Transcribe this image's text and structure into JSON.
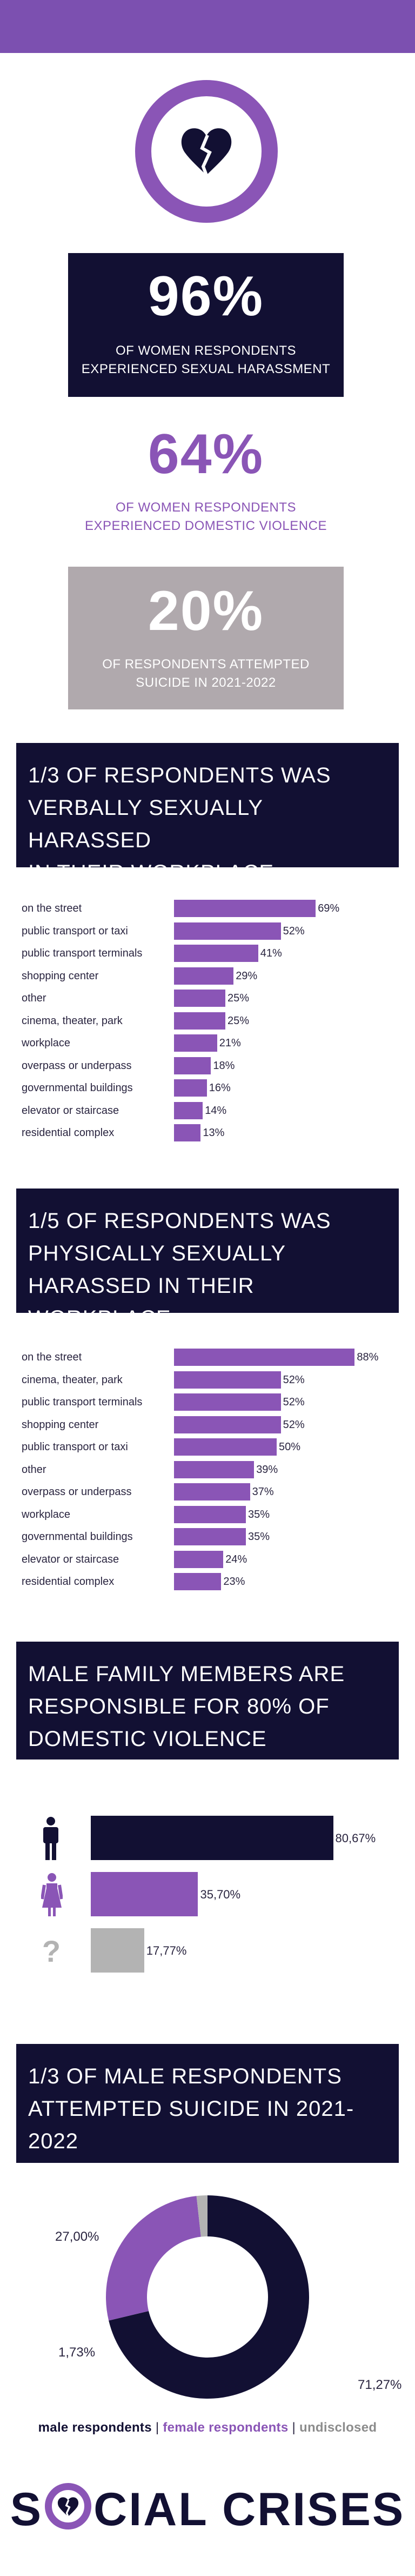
{
  "stats": [
    {
      "value": "96%",
      "caption_l1": "OF WOMEN RESPONDENTS",
      "caption_l2": "EXPERIENCED SEXUAL HARASSMENT"
    },
    {
      "value": "64%",
      "caption_l1": "OF WOMEN RESPONDENTS",
      "caption_l2": "EXPERIENCED DOMESTIC VIOLENCE"
    },
    {
      "value": "20%",
      "caption_l1": "OF RESPONDENTS ATTEMPTED",
      "caption_l2": "SUICIDE IN 2021-2022"
    }
  ],
  "headings": {
    "verbal": [
      "1/3 OF RESPONDENTS WAS",
      "VERBALLY SEXUALLY HARASSED",
      "IN THEIR WORKPLACE"
    ],
    "physical": [
      "1/5 OF RESPONDENTS WAS",
      "PHYSICALLY SEXUALLY",
      "HARASSED IN THEIR WORKPLACE"
    ],
    "domestic": [
      "MALE FAMILY MEMBERS ARE",
      "RESPONSIBLE FOR 80% OF",
      "DOMESTIC VIOLENCE"
    ],
    "suicide": [
      "1/3 OF MALE RESPONDENTS",
      "ATTEMPTED SUICIDE IN 2021-",
      "2022"
    ]
  },
  "legend": {
    "male": "male respondents",
    "female": "female respondents",
    "undisclosed": "undisclosed",
    "sep": "|"
  },
  "brand": {
    "left": "S",
    "right": "CIAL CRISES"
  },
  "colors": {
    "navy": "#121033",
    "purple": "#8a55b6",
    "grey": "#b3b3b3",
    "lilac": "#b0a9ad"
  },
  "icons": {
    "top": "broken-heart-icon",
    "male": "male-person-icon",
    "female": "female-person-icon",
    "unknown": "question-mark-icon"
  },
  "chart_data": [
    {
      "type": "bar",
      "orientation": "horizontal",
      "categories": [
        "on the street",
        "public transport or taxi",
        "public transport terminals",
        "shopping center",
        "other",
        "cinema, theater, park",
        "workplace",
        "overpass or underpass",
        "governmental buildings",
        "elevator or staircase",
        "residential complex"
      ],
      "values": [
        69,
        52,
        41,
        29,
        25,
        25,
        21,
        18,
        16,
        14,
        13
      ],
      "value_labels": [
        "69%",
        "52%",
        "41%",
        "29%",
        "25%",
        "25%",
        "21%",
        "18%",
        "16%",
        "14%",
        "13%"
      ],
      "xlim": [
        0,
        100
      ]
    },
    {
      "type": "bar",
      "orientation": "horizontal",
      "categories": [
        "on the street",
        "cinema, theater, park",
        "public transport terminals",
        "shopping center",
        "public transport or taxi",
        "other",
        "overpass or underpass",
        "workplace",
        "governmental buildings",
        "elevator or staircase",
        "residential complex"
      ],
      "values": [
        88,
        52,
        52,
        52,
        50,
        39,
        37,
        35,
        35,
        24,
        23
      ],
      "value_labels": [
        "88%",
        "52%",
        "52%",
        "52%",
        "50%",
        "39%",
        "37%",
        "35%",
        "35%",
        "24%",
        "23%"
      ],
      "xlim": [
        0,
        100
      ]
    },
    {
      "type": "bar",
      "orientation": "horizontal",
      "categories": [
        "male",
        "female",
        "undisclosed"
      ],
      "values": [
        80.67,
        35.7,
        17.77
      ],
      "value_labels": [
        "80,67%",
        "35,70%",
        "17,77%"
      ],
      "xlim": [
        0,
        100
      ]
    },
    {
      "type": "pie",
      "variant": "donut",
      "categories": [
        "male respondents",
        "female respondents",
        "undisclosed"
      ],
      "values": [
        71.27,
        27.0,
        1.73
      ],
      "value_labels": [
        "71,27%",
        "27,00%",
        "1,73%"
      ]
    }
  ]
}
